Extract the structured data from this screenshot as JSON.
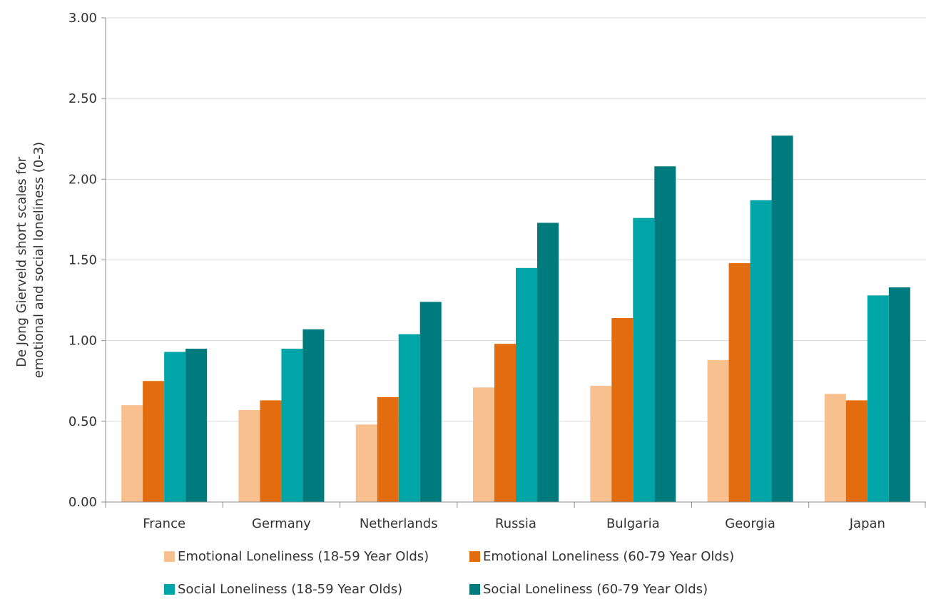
{
  "chart_data": {
    "type": "bar",
    "ylabel_lines": [
      "De Jong Gierveld short scales for",
      "emotional and social loneliness  (0-3)"
    ],
    "categories": [
      "France",
      "Germany",
      "Netherlands",
      "Russia",
      "Bulgaria",
      "Georgia",
      "Japan"
    ],
    "ylim": [
      0,
      3
    ],
    "yticks": [
      "0.00",
      "0.50",
      "1.00",
      "1.50",
      "2.00",
      "2.50",
      "3.00"
    ],
    "ytick_values": [
      0,
      0.5,
      1,
      1.5,
      2,
      2.5,
      3
    ],
    "grid": true,
    "legend_position": "bottom",
    "series": [
      {
        "name": "Emotional Loneliness (18-59 Year Olds)",
        "color": "#f8c08f",
        "values": [
          0.6,
          0.57,
          0.48,
          0.71,
          0.72,
          0.88,
          0.67
        ]
      },
      {
        "name": "Emotional Loneliness (60-79 Year Olds)",
        "color": "#e36c0e",
        "values": [
          0.75,
          0.63,
          0.65,
          0.98,
          1.14,
          1.48,
          0.63
        ]
      },
      {
        "name": "Social Loneliness (18-59 Year Olds)",
        "color": "#00a5a8",
        "values": [
          0.93,
          0.95,
          1.04,
          1.45,
          1.76,
          1.87,
          1.28
        ]
      },
      {
        "name": "Social Loneliness (60-79 Year Olds)",
        "color": "#007b7d",
        "values": [
          0.95,
          1.07,
          1.24,
          1.73,
          2.08,
          2.27,
          1.33
        ]
      }
    ]
  }
}
